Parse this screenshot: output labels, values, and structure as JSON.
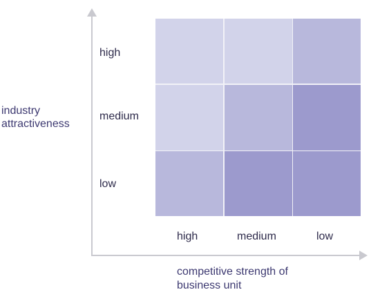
{
  "y_axis": {
    "title_line1": "industry",
    "title_line2": "attractiveness",
    "levels": [
      "high",
      "medium",
      "low"
    ]
  },
  "x_axis": {
    "title_line1": "competitive strength of",
    "title_line2": "business unit",
    "levels": [
      "high",
      "medium",
      "low"
    ]
  },
  "matrix": {
    "cells": [
      [
        "#d2d3ea",
        "#d2d3ea",
        "#b8b8dc"
      ],
      [
        "#d2d3ea",
        "#b8b8dc",
        "#9c9acd"
      ],
      [
        "#b8b8dc",
        "#9c9acd",
        "#9c9acd"
      ]
    ]
  },
  "colors": {
    "axis": "#c9c9cf",
    "light": "#d2d3ea",
    "mid": "#b8b8dc",
    "dark": "#9c9acd"
  }
}
